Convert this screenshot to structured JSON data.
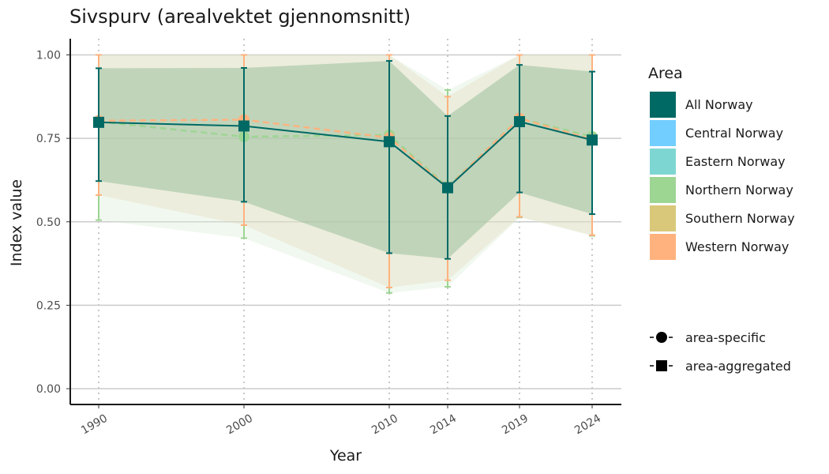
{
  "chart_data": {
    "type": "line",
    "title": "Sivspurv (arealvektet gjennomsnitt)",
    "xlabel": "Year",
    "ylabel": "Index value",
    "x": [
      1990,
      2000,
      2010,
      2014,
      2019,
      2024
    ],
    "x_tick_labels": [
      "1990",
      "2000",
      "2010",
      "2014",
      "2019",
      "2024"
    ],
    "ylim": [
      0,
      1
    ],
    "y_ticks": [
      0,
      0.25,
      0.5,
      0.75,
      1
    ],
    "y_tick_labels": [
      "0.00",
      "0.25",
      "0.50",
      "0.75",
      "1.00"
    ],
    "grid": {
      "horizontal": true,
      "vertical_dotted": true
    },
    "legend_area": {
      "title": "Area",
      "placement": "right",
      "items": [
        {
          "label": "All Norway",
          "color": "#006964"
        },
        {
          "label": "Central Norway",
          "color": "#72CEFF"
        },
        {
          "label": "Eastern Norway",
          "color": "#7ED6D2"
        },
        {
          "label": "Northern Norway",
          "color": "#9DD593"
        },
        {
          "label": "Southern Norway",
          "color": "#D9C87A"
        },
        {
          "label": "Western Norway",
          "color": "#FFB27E"
        }
      ]
    },
    "legend_type": {
      "items": [
        {
          "label": "area-specific",
          "shape": "circle"
        },
        {
          "label": "area-aggregated",
          "shape": "square"
        }
      ]
    },
    "series": [
      {
        "name": "All Norway",
        "kind": "area-aggregated",
        "color": "#006964",
        "values": [
          0.798,
          0.787,
          0.74,
          0.602,
          0.8,
          0.745
        ],
        "lower": [
          0.622,
          0.56,
          0.406,
          0.389,
          0.588,
          0.523
        ],
        "upper": [
          0.96,
          0.961,
          0.982,
          0.817,
          0.97,
          0.95
        ]
      },
      {
        "name": "Northern Norway",
        "kind": "area-specific",
        "color": "#9DD593",
        "values": [
          0.8,
          0.755,
          0.76,
          0.605,
          0.81,
          0.755
        ],
        "lower": [
          0.505,
          0.451,
          0.287,
          0.305,
          0.513,
          0.458
        ],
        "upper": [
          1.0,
          1.0,
          1.0,
          0.895,
          1.0,
          1.0
        ]
      },
      {
        "name": "Western Norway",
        "kind": "area-specific",
        "color": "#FFB27E",
        "values": [
          0.803,
          0.806,
          0.752,
          0.603,
          0.81,
          0.747
        ],
        "lower": [
          0.58,
          0.49,
          0.303,
          0.325,
          0.515,
          0.46
        ],
        "upper": [
          1.0,
          1.0,
          1.0,
          0.875,
          1.0,
          1.0
        ]
      }
    ]
  }
}
